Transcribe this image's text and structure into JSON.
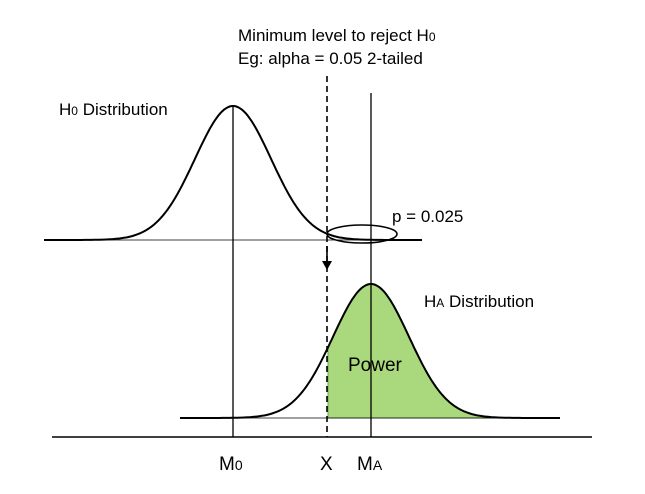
{
  "annotation": {
    "line1_prefix": "Minimum level to reject H",
    "line1_sub": "0",
    "line2": "Eg: alpha = 0.05 2-tailed"
  },
  "h0_label": {
    "main": "H",
    "sub": "0",
    "rest": " Distribution"
  },
  "ha_label": {
    "main": "H",
    "sub": "A",
    "rest": " Distribution"
  },
  "p_label": "p = 0.025",
  "power_label": "Power",
  "axis": {
    "m0": {
      "main": "M",
      "sub": "0"
    },
    "x": "X",
    "ma": {
      "main": "M",
      "sub": "A"
    }
  },
  "colors": {
    "power_fill": "#a9d97c",
    "power_stroke": "#6aa84f",
    "curve": "#000000"
  }
}
